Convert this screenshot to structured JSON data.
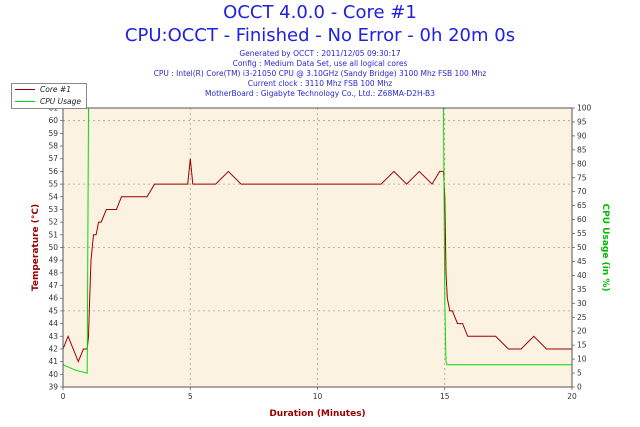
{
  "header": {
    "title": "OCCT 4.0.0 - Core #1",
    "subtitle": "CPU:OCCT - Finished - No Error - 0h 20m 0s",
    "info": [
      "Generated by OCCT : 2011/12/05 09:30:17",
      "Config : Medium Data Set, use all logical cores",
      "CPU : Intel(R) Core(TM) i3-21050 CPU @ 3.10GHz (Sandy Bridge) 3100 Mhz FSB 100 Mhz",
      "Current clock : 3110 Mhz FSB 100 Mhz",
      "MotherBoard : Gigabyte Technology Co., Ltd.: Z68MA-D2H-B3"
    ]
  },
  "colors": {
    "core": "#990000",
    "cpu": "#00dd00",
    "plot_bg": "#fcf2e2",
    "grid": "#b0a080",
    "title": "#2020e0",
    "axis_left": "#990000",
    "axis_right": "#00bb00"
  },
  "chart_data": {
    "type": "line",
    "title": "OCCT 4.0.0 - Core #1",
    "xlabel": "Duration (Minutes)",
    "ylabel": "Temperature (°C)",
    "y2label": "CPU Usage (in %)",
    "xlim": [
      0,
      20
    ],
    "ylim": [
      39,
      61
    ],
    "y2lim": [
      0,
      100
    ],
    "xticks": [
      0,
      5,
      10,
      15,
      20
    ],
    "yticks": [
      39,
      40,
      41,
      42,
      43,
      44,
      45,
      46,
      47,
      48,
      49,
      50,
      51,
      52,
      53,
      54,
      55,
      56,
      57,
      58,
      59,
      60,
      61
    ],
    "y2ticks": [
      0,
      5,
      10,
      15,
      20,
      25,
      30,
      35,
      40,
      45,
      50,
      55,
      60,
      65,
      70,
      75,
      80,
      85,
      90,
      95,
      100
    ],
    "grid": true,
    "legend_position": "top-left",
    "series": [
      {
        "name": "Core #1",
        "axis": "left",
        "x": [
          0,
          0.2,
          0.4,
          0.6,
          0.8,
          0.95,
          1.0,
          1.05,
          1.1,
          1.2,
          1.3,
          1.4,
          1.5,
          1.7,
          1.9,
          2.1,
          2.3,
          2.5,
          2.7,
          3.0,
          3.3,
          3.6,
          4.0,
          4.3,
          4.6,
          4.9,
          5.0,
          5.1,
          5.5,
          6.0,
          6.5,
          7.0,
          7.5,
          8.0,
          8.5,
          9.0,
          9.5,
          10.0,
          10.5,
          11.0,
          11.5,
          12.0,
          12.5,
          13.0,
          13.5,
          14.0,
          14.5,
          14.8,
          14.95,
          15.0,
          15.05,
          15.1,
          15.2,
          15.3,
          15.5,
          15.7,
          15.9,
          16.2,
          16.5,
          17.0,
          17.5,
          18.0,
          18.5,
          19.0,
          19.5,
          20.0
        ],
        "y": [
          42,
          43,
          42,
          41,
          42,
          42,
          43,
          46,
          49,
          51,
          51,
          52,
          52,
          53,
          53,
          53,
          54,
          54,
          54,
          54,
          54,
          55,
          55,
          55,
          55,
          55,
          57,
          55,
          55,
          55,
          56,
          55,
          55,
          55,
          55,
          55,
          55,
          55,
          55,
          55,
          55,
          55,
          55,
          56,
          55,
          56,
          55,
          56,
          56,
          54,
          48,
          46,
          45,
          45,
          44,
          44,
          43,
          43,
          43,
          43,
          42,
          42,
          43,
          42,
          42,
          42
        ]
      },
      {
        "name": "CPU Usage",
        "axis": "right",
        "x": [
          0,
          0.5,
          0.95,
          1.0,
          1.05,
          1.1,
          14.9,
          14.95,
          15.0,
          15.05,
          15.1,
          20.0
        ],
        "y": [
          8,
          6,
          5,
          100,
          100,
          100,
          100,
          100,
          30,
          9,
          8,
          8
        ]
      }
    ]
  }
}
